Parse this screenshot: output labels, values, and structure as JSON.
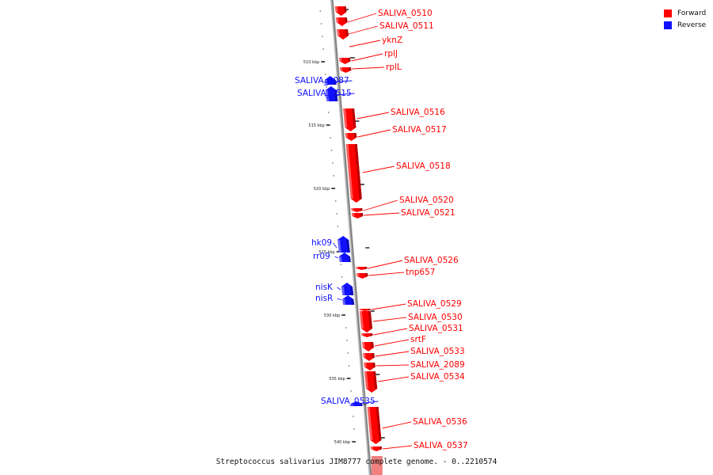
{
  "caption": "Streptococcus salivarius JIM8777 complete genome. - 0..2210574",
  "legend": [
    {
      "label": "Forward",
      "color": "#ff0000"
    },
    {
      "label": "Reverse",
      "color": "#1010ff"
    }
  ],
  "colors": {
    "forward": "#ff0000",
    "reverse": "#1010ff",
    "backbone": "#999999"
  },
  "scale_ticks": [
    "510 kbp",
    "515 kbp",
    "520 kbp",
    "525 kbp",
    "530 kbp",
    "535 kbp",
    "540 kbp"
  ],
  "genes": [
    {
      "name": "SALIVA_0510",
      "strand": "forward"
    },
    {
      "name": "SALIVA_0511",
      "strand": "forward"
    },
    {
      "name": "yknZ",
      "strand": "forward"
    },
    {
      "name": "rplJ",
      "strand": "forward"
    },
    {
      "name": "rplL",
      "strand": "forward"
    },
    {
      "name": "SALIVA_2087",
      "strand": "reverse"
    },
    {
      "name": "SALIVA_0515",
      "strand": "reverse"
    },
    {
      "name": "SALIVA_0516",
      "strand": "forward"
    },
    {
      "name": "SALIVA_0517",
      "strand": "forward"
    },
    {
      "name": "SALIVA_0518",
      "strand": "forward"
    },
    {
      "name": "SALIVA_0520",
      "strand": "forward"
    },
    {
      "name": "SALIVA_0521",
      "strand": "forward"
    },
    {
      "name": "hk09",
      "strand": "reverse"
    },
    {
      "name": "rr09",
      "strand": "reverse"
    },
    {
      "name": "SALIVA_0526",
      "strand": "forward"
    },
    {
      "name": "tnp657",
      "strand": "forward"
    },
    {
      "name": "nisK",
      "strand": "reverse"
    },
    {
      "name": "nisR",
      "strand": "reverse"
    },
    {
      "name": "SALIVA_0529",
      "strand": "forward"
    },
    {
      "name": "SALIVA_0530",
      "strand": "forward"
    },
    {
      "name": "SALIVA_0531",
      "strand": "forward"
    },
    {
      "name": "srtF",
      "strand": "forward"
    },
    {
      "name": "SALIVA_0533",
      "strand": "forward"
    },
    {
      "name": "SALIVA_2089",
      "strand": "forward"
    },
    {
      "name": "SALIVA_0534",
      "strand": "forward"
    },
    {
      "name": "SALIVA_0535",
      "strand": "reverse"
    },
    {
      "name": "SALIVA_0536",
      "strand": "forward"
    },
    {
      "name": "SALIVA_0537",
      "strand": "forward"
    }
  ]
}
